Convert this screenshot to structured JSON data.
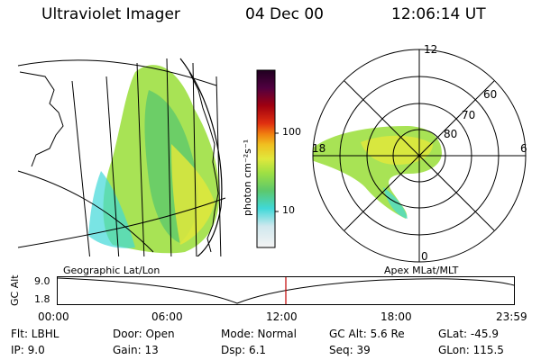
{
  "header": {
    "instrument": "Ultraviolet Imager",
    "date": "04 Dec 00",
    "time": "12:06:14 UT"
  },
  "colorbar": {
    "unit_label": "photon cm⁻²s⁻¹",
    "ticks": [
      "100",
      "10"
    ],
    "colors": [
      "#f4f4f4",
      "#d0e8ee",
      "#40d8d8",
      "#5cc86c",
      "#9ee043",
      "#e0e83c",
      "#f0c020",
      "#f08010",
      "#e03010",
      "#a00010",
      "#500040",
      "#200020"
    ]
  },
  "geo_panel": {
    "name": "Geographic Lat/Lon"
  },
  "polar_panel": {
    "name": "Apex MLat/MLT",
    "mlt_labels": {
      "top": "12",
      "left": "18",
      "right": "6",
      "bottom": "0"
    },
    "lat_labels": [
      "60",
      "70",
      "80"
    ]
  },
  "timeline": {
    "axis_label": "GC Alt",
    "y_ticks": [
      "9.0",
      "1.8"
    ],
    "x_ticks": [
      "00:00",
      "06:00",
      "12:00",
      "18:00",
      "23:59"
    ],
    "marker_color": "#c00000"
  },
  "info": {
    "flt": "Flt:  LBHL",
    "ip": "IP:  9.0",
    "door": "Door:  Open",
    "gain": "Gain:  13",
    "mode": "Mode:  Normal",
    "dsp": "Dsp:     6.1",
    "gcalt": "GC Alt:  5.6 Re",
    "seq": "Seq:  39",
    "glat": "GLat:  -45.9",
    "glon": "GLon:  115.5"
  }
}
